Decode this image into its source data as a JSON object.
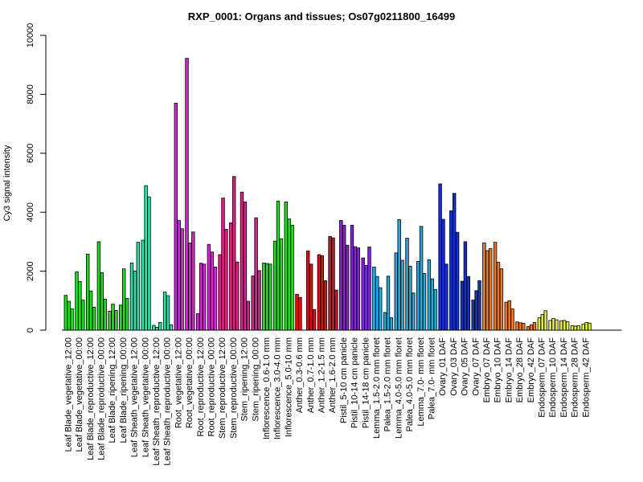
{
  "chart_data": {
    "type": "bar",
    "title": "RXP_0001: Organs and tissues; Os07g0211800_16499",
    "ylabel": "Cy3 signal intensity",
    "xlabel": "",
    "ylim": [
      0,
      10000
    ],
    "yticks": [
      "0",
      "2000",
      "4000",
      "6000",
      "8000",
      "10000"
    ],
    "ytick_values": [
      0,
      2000,
      4000,
      6000,
      8000,
      10000
    ],
    "groups": [
      {
        "label": "Leaf Blade_vegetative_12:00",
        "color": "#22dd22",
        "values": [
          1180,
          980,
          720
        ]
      },
      {
        "label": "Leaf Blade_vegetative_00:00",
        "color": "#22dd22",
        "values": [
          1980,
          1650,
          1020
        ]
      },
      {
        "label": "Leaf Blade_reproductive_12:00",
        "color": "#22dd22",
        "values": [
          2580,
          1330,
          780
        ]
      },
      {
        "label": "Leaf Blade_reproductive_00:00",
        "color": "#22dd22",
        "values": [
          3000,
          1950,
          1050
        ]
      },
      {
        "label": "Leaf Blade_ripening_12:00",
        "color": "#22dd22",
        "values": [
          640,
          880,
          670
        ]
      },
      {
        "label": "Leaf Blade_ripening_00:00",
        "color": "#22dd22",
        "values": [
          850,
          2080,
          1080
        ]
      },
      {
        "label": "Leaf Sheath_vegetative_12:00",
        "color": "#33ddaa",
        "values": [
          2280,
          2000,
          2980
        ]
      },
      {
        "label": "Leaf Sheath_vegetative_00:00",
        "color": "#33ddaa",
        "values": [
          3050,
          4900,
          4520
        ]
      },
      {
        "label": "Leaf Sheath_reproductive_12:00",
        "color": "#33ddaa",
        "values": [
          160,
          100,
          260
        ]
      },
      {
        "label": "Leaf Sheath_reproductive_00:00",
        "color": "#33ddaa",
        "values": [
          1290,
          1170,
          180
        ]
      },
      {
        "label": "Root_vegetative_12:00",
        "color": "#dd22dd",
        "values": [
          7700,
          3720,
          3440
        ]
      },
      {
        "label": "Root_vegetative_00:00",
        "color": "#dd22dd",
        "values": [
          9220,
          2960,
          3330
        ]
      },
      {
        "label": "Root_reproductive_12:00",
        "color": "#dd22dd",
        "values": [
          560,
          2270,
          2240
        ]
      },
      {
        "label": "Root_reproductive_00:00",
        "color": "#dd22dd",
        "values": [
          2910,
          2650,
          2140
        ]
      },
      {
        "label": "Stem_reproductive_12:00",
        "color": "#dd2288",
        "values": [
          2560,
          4480,
          3420
        ]
      },
      {
        "label": "Stem_reproductive_00:00",
        "color": "#dd2288",
        "values": [
          3640,
          5210,
          2310
        ]
      },
      {
        "label": "Stem_ripening_12:00",
        "color": "#dd2288",
        "values": [
          4680,
          4350,
          980
        ]
      },
      {
        "label": "Stem_ripening_00:00",
        "color": "#dd2288",
        "values": [
          1840,
          3810,
          2020
        ]
      },
      {
        "label": "Inflorescence_0.6-1.0 mm",
        "color": "#22dd22",
        "values": [
          2280,
          2260,
          2240
        ]
      },
      {
        "label": "Inflorescence_3.0-4.0 mm",
        "color": "#22dd22",
        "values": [
          3020,
          4380,
          3100
        ]
      },
      {
        "label": "Inflorescence_5.0-10 mm",
        "color": "#22dd22",
        "values": [
          4350,
          3770,
          3560
        ]
      },
      {
        "label": "Anther_0.3-0.6 mm",
        "color": "#dd1111",
        "values": [
          1220,
          1110,
          0
        ]
      },
      {
        "label": "Anther_0.7-1.0 mm",
        "color": "#dd1111",
        "values": [
          2690,
          2240,
          700
        ]
      },
      {
        "label": "Anther_1.2-1.5 mm",
        "color": "#dd1111",
        "values": [
          2560,
          2530,
          1680
        ]
      },
      {
        "label": "Anther_1.6-2.0 mm",
        "color": "#dd1111",
        "values": [
          3180,
          3130,
          1360
        ]
      },
      {
        "label": "Pistil_5-10 cm panicle",
        "color": "#8822dd",
        "values": [
          3720,
          3560,
          2880
        ]
      },
      {
        "label": "Pistil_10-14 cm panicle",
        "color": "#8822dd",
        "values": [
          3560,
          2830,
          2790
        ]
      },
      {
        "label": "Pistil_14-18 cm panicle",
        "color": "#8822dd",
        "values": [
          2450,
          2200,
          2820
        ]
      },
      {
        "label": "Lemma_1.5-2.0 mm floret",
        "color": "#22aadd",
        "values": [
          2140,
          1820,
          1440
        ]
      },
      {
        "label": "Palea_1.5-2.0 mm floret",
        "color": "#22aadd",
        "values": [
          600,
          1830,
          420
        ]
      },
      {
        "label": "Lemma_4.0-5.0 mm floret",
        "color": "#22aadd",
        "values": [
          2620,
          3750,
          2370
        ]
      },
      {
        "label": "Palea_4.0-5.0 mm floret",
        "color": "#22aadd",
        "values": [
          3120,
          2170,
          1260
        ]
      },
      {
        "label": "Lemma_7.0- mm floret",
        "color": "#22aadd",
        "values": [
          2330,
          3520,
          1920
        ]
      },
      {
        "label": "Palea_7.0- mm floret",
        "color": "#22aadd",
        "values": [
          2390,
          1740,
          1380
        ]
      },
      {
        "label": "Ovary_01 DAF",
        "color": "#1133cc",
        "values": [
          4960,
          3760,
          2240
        ]
      },
      {
        "label": "Ovary_03 DAF",
        "color": "#1133cc",
        "values": [
          4050,
          4640,
          3320
        ]
      },
      {
        "label": "Ovary_05 DAF",
        "color": "#1133cc",
        "values": [
          1660,
          3000,
          1820
        ]
      },
      {
        "label": "Ovary_07 DAF",
        "color": "#1133cc",
        "values": [
          1020,
          1340,
          1680
        ]
      },
      {
        "label": "Embryo_07 DAF",
        "color": "#ee7722",
        "values": [
          2960,
          2700,
          2770
        ]
      },
      {
        "label": "Embryo_10 DAF",
        "color": "#ee7722",
        "values": [
          2980,
          2300,
          2080
        ]
      },
      {
        "label": "Embryo_14 DAF",
        "color": "#ee7722",
        "values": [
          950,
          1000,
          720
        ]
      },
      {
        "label": "Embryo_28 DAF",
        "color": "#ee7722",
        "values": [
          280,
          250,
          230
        ]
      },
      {
        "label": "Embryo_42 DAF",
        "color": "#ee7722",
        "values": [
          120,
          180,
          260
        ]
      },
      {
        "label": "Endosperm_07 DAF",
        "color": "#ddee33",
        "values": [
          420,
          530,
          660
        ]
      },
      {
        "label": "Endosperm_10 DAF",
        "color": "#ddee33",
        "values": [
          330,
          400,
          350
        ]
      },
      {
        "label": "Endosperm_14 DAF",
        "color": "#ddee33",
        "values": [
          320,
          330,
          290
        ]
      },
      {
        "label": "Endosperm_28 DAF",
        "color": "#ddee33",
        "values": [
          150,
          140,
          150
        ]
      },
      {
        "label": "Endosperm_42 DAF",
        "color": "#ddee33",
        "values": [
          200,
          260,
          240
        ]
      }
    ]
  }
}
